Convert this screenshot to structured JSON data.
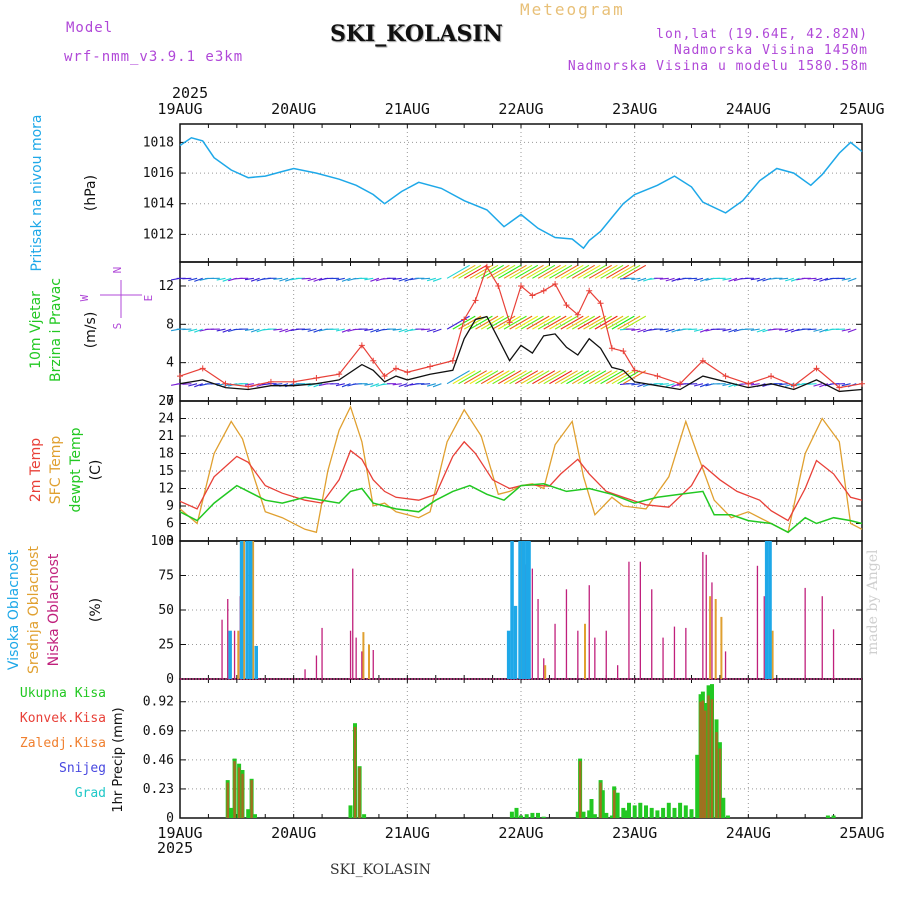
{
  "header": {
    "model_label": "Model",
    "model_name": "wrf-nmm_v3.9.1 e3km",
    "station": "SKI_KOLASIN",
    "meteogram": "Meteogram",
    "lonlat": "lon,lat (19.64E, 42.82N)",
    "altitude": "Nadmorska Visina 1450m",
    "model_altitude": "Nadmorska Visina u modelu 1580.58m",
    "year": "2025",
    "made_by": "made by Angel",
    "footer_station": "SKI_KOLASIN"
  },
  "colors": {
    "pressure": "#1ea8e8",
    "temp2m": "#e84038",
    "sfc_temp": "#e0a030",
    "dewpoint": "#22c822",
    "high_cloud": "#1ea8e8",
    "mid_cloud": "#e0a030",
    "low_cloud": "#c0207c",
    "total_precip": "#22c822",
    "conv_precip": "#e84038",
    "ice_precip": "#f08030",
    "snow": "#4848e0",
    "hail": "#20c8c8",
    "wind_label": "#22c822",
    "dir_label": "#b048d8"
  },
  "chart_data": [
    {
      "id": "pressure",
      "type": "line",
      "title": "Pritisak na nivou mora",
      "ylabel": "(hPa)",
      "ylim": [
        1010.2,
        1019.2
      ],
      "yticks": [
        "1012",
        "1014",
        "1016",
        "1018"
      ],
      "ytick_values": [
        1012,
        1014,
        1016,
        1018
      ],
      "xlim": [
        0,
        6
      ],
      "xtick_labels": [
        "19AUG",
        "20AUG",
        "21AUG",
        "22AUG",
        "23AUG",
        "24AUG",
        "25AUG"
      ],
      "series": [
        {
          "name": "MSLP",
          "x": [
            0,
            0.1,
            0.2,
            0.3,
            0.45,
            0.6,
            0.75,
            0.9,
            1.0,
            1.2,
            1.4,
            1.55,
            1.7,
            1.8,
            1.95,
            2.1,
            2.3,
            2.5,
            2.7,
            2.85,
            3.0,
            3.15,
            3.3,
            3.45,
            3.55,
            3.6,
            3.7,
            3.8,
            3.9,
            4.0,
            4.2,
            4.35,
            4.5,
            4.6,
            4.8,
            4.95,
            5.1,
            5.25,
            5.4,
            5.55,
            5.65,
            5.8,
            5.9,
            6.0
          ],
          "values": [
            1017.8,
            1018.3,
            1018.1,
            1017.0,
            1016.2,
            1015.7,
            1015.8,
            1016.1,
            1016.3,
            1016.0,
            1015.6,
            1015.2,
            1014.6,
            1014.0,
            1014.8,
            1015.4,
            1015.0,
            1014.2,
            1013.6,
            1012.5,
            1013.3,
            1012.4,
            1011.8,
            1011.7,
            1011.1,
            1011.6,
            1012.2,
            1013.1,
            1014.0,
            1014.6,
            1015.2,
            1015.8,
            1015.1,
            1014.1,
            1013.4,
            1014.2,
            1015.5,
            1016.3,
            1016.0,
            1015.2,
            1015.9,
            1017.3,
            1018.0,
            1017.4
          ]
        }
      ]
    },
    {
      "id": "wind",
      "type": "line",
      "title": "10m Vjetar Brzina i Pravac",
      "ylabel": "(m/s)",
      "ylim": [
        0,
        14
      ],
      "yticks": [
        "0",
        "4",
        "8",
        "12"
      ],
      "ytick_values": [
        0,
        4,
        8,
        12
      ],
      "direction_legend": [
        "N",
        "W",
        "E",
        "S"
      ],
      "xlim": [
        0,
        6
      ],
      "series": [
        {
          "name": "wind speed",
          "x": [
            0,
            0.2,
            0.4,
            0.6,
            0.8,
            1.0,
            1.2,
            1.4,
            1.6,
            1.7,
            1.8,
            1.9,
            2.0,
            2.2,
            2.4,
            2.5,
            2.6,
            2.7,
            2.8,
            2.9,
            3.0,
            3.1,
            3.2,
            3.3,
            3.4,
            3.5,
            3.6,
            3.7,
            3.8,
            3.9,
            4.0,
            4.2,
            4.4,
            4.6,
            4.8,
            5.0,
            5.2,
            5.4,
            5.6,
            5.8,
            6.0
          ],
          "values": [
            1.8,
            2.2,
            1.4,
            1.2,
            1.6,
            1.6,
            1.8,
            2.2,
            3.8,
            3.2,
            2.0,
            2.6,
            2.2,
            2.8,
            3.2,
            6.5,
            8.5,
            8.8,
            6.5,
            4.2,
            5.8,
            5.0,
            6.8,
            7.0,
            5.6,
            4.8,
            6.5,
            5.5,
            3.5,
            3.2,
            2.0,
            1.6,
            1.2,
            2.6,
            2.0,
            1.4,
            1.8,
            1.2,
            2.2,
            1.0,
            1.2
          ]
        },
        {
          "name": "wind gust",
          "x": [
            0,
            0.2,
            0.4,
            0.6,
            0.8,
            1.0,
            1.2,
            1.4,
            1.6,
            1.7,
            1.8,
            1.9,
            2.0,
            2.2,
            2.4,
            2.5,
            2.6,
            2.7,
            2.8,
            2.9,
            3.0,
            3.1,
            3.2,
            3.3,
            3.4,
            3.5,
            3.6,
            3.7,
            3.8,
            3.9,
            4.0,
            4.2,
            4.4,
            4.6,
            4.8,
            5.0,
            5.2,
            5.4,
            5.6,
            5.8,
            6.0
          ],
          "values": [
            2.6,
            3.4,
            1.8,
            1.5,
            2.0,
            2.0,
            2.4,
            2.8,
            5.8,
            4.2,
            2.6,
            3.4,
            3.0,
            3.6,
            4.2,
            8.5,
            10.5,
            14.0,
            12.0,
            8.2,
            12.0,
            11.0,
            11.5,
            12.2,
            10.0,
            9.0,
            11.5,
            10.2,
            5.5,
            5.2,
            3.2,
            2.6,
            1.8,
            4.2,
            2.6,
            1.8,
            2.6,
            1.6,
            3.4,
            1.4,
            1.8
          ]
        }
      ],
      "arrow_rows_ms": [
        1.8,
        7.5,
        12.8
      ]
    },
    {
      "id": "temperature",
      "type": "line",
      "title": "2m Temp / SFC Temp / dewpt Temp",
      "legend": [
        "2m Temp",
        "SFC Temp",
        "dewpt Temp"
      ],
      "ylabel": "(C)",
      "ylim": [
        3,
        27
      ],
      "yticks": [
        "3",
        "6",
        "9",
        "12",
        "15",
        "18",
        "21",
        "24",
        "27"
      ],
      "ytick_values": [
        3,
        6,
        9,
        12,
        15,
        18,
        21,
        24,
        27
      ],
      "xlim": [
        0,
        6
      ],
      "series": [
        {
          "name": "2m Temp",
          "x": [
            0,
            0.15,
            0.3,
            0.5,
            0.6,
            0.75,
            0.9,
            1.1,
            1.25,
            1.4,
            1.5,
            1.6,
            1.7,
            1.8,
            1.9,
            2.1,
            2.25,
            2.4,
            2.5,
            2.6,
            2.75,
            2.9,
            3.0,
            3.1,
            3.25,
            3.35,
            3.5,
            3.6,
            3.75,
            3.9,
            4.1,
            4.3,
            4.5,
            4.6,
            4.75,
            4.9,
            5.1,
            5.2,
            5.35,
            5.5,
            5.6,
            5.75,
            5.9,
            6.0
          ],
          "values": [
            9.8,
            8.5,
            14.0,
            17.5,
            16.5,
            12.5,
            11.2,
            10.0,
            9.5,
            13.5,
            18.5,
            17.0,
            13.5,
            11.5,
            10.5,
            10.0,
            11.0,
            17.5,
            20.0,
            18.0,
            13.5,
            12.0,
            12.5,
            12.6,
            12.4,
            14.5,
            17.0,
            14.5,
            11.5,
            10.5,
            9.2,
            8.8,
            12.5,
            16.0,
            13.5,
            11.5,
            10.0,
            8.2,
            6.5,
            12.0,
            16.8,
            14.5,
            10.5,
            10.0
          ]
        },
        {
          "name": "SFC Temp",
          "x": [
            0,
            0.15,
            0.3,
            0.45,
            0.55,
            0.65,
            0.75,
            0.9,
            1.1,
            1.2,
            1.3,
            1.4,
            1.5,
            1.6,
            1.7,
            1.8,
            1.9,
            2.1,
            2.2,
            2.35,
            2.5,
            2.65,
            2.8,
            2.9,
            3.0,
            3.1,
            3.2,
            3.3,
            3.45,
            3.55,
            3.65,
            3.8,
            3.9,
            4.1,
            4.3,
            4.45,
            4.55,
            4.7,
            4.85,
            5.0,
            5.2,
            5.35,
            5.5,
            5.65,
            5.8,
            5.9,
            6.0
          ],
          "values": [
            8.5,
            6.0,
            18.0,
            23.5,
            20.5,
            14.0,
            8.0,
            7.0,
            5.0,
            4.5,
            15.0,
            22.0,
            26.0,
            20.0,
            9.0,
            9.5,
            8.0,
            7.0,
            8.0,
            20.0,
            25.5,
            21.0,
            11.0,
            11.5,
            12.5,
            12.8,
            12.0,
            19.5,
            23.5,
            14.0,
            7.5,
            10.5,
            9.0,
            8.5,
            14.0,
            23.5,
            18.0,
            10.0,
            7.0,
            8.0,
            6.0,
            4.5,
            18.0,
            24.0,
            20.0,
            6.0,
            5.0
          ]
        },
        {
          "name": "dewpt Temp",
          "x": [
            0,
            0.15,
            0.3,
            0.5,
            0.6,
            0.75,
            0.9,
            1.1,
            1.25,
            1.4,
            1.5,
            1.6,
            1.7,
            1.8,
            1.9,
            2.1,
            2.25,
            2.4,
            2.55,
            2.7,
            2.85,
            3.0,
            3.2,
            3.4,
            3.6,
            3.8,
            4.0,
            4.2,
            4.4,
            4.6,
            4.7,
            4.85,
            5.0,
            5.2,
            5.35,
            5.5,
            5.6,
            5.75,
            5.9,
            6.0
          ],
          "values": [
            8.0,
            6.5,
            9.5,
            12.5,
            11.5,
            10.0,
            9.5,
            10.5,
            10.0,
            9.5,
            11.5,
            12.0,
            9.5,
            9.0,
            8.5,
            8.0,
            10.0,
            11.5,
            12.5,
            11.0,
            10.0,
            12.5,
            12.8,
            11.5,
            12.0,
            11.0,
            9.5,
            10.5,
            11.0,
            11.5,
            7.5,
            7.5,
            6.5,
            6.0,
            4.5,
            7.0,
            6.0,
            7.0,
            6.5,
            6.0
          ]
        }
      ]
    },
    {
      "id": "cloud",
      "type": "bar",
      "title": "Visoka / Srednja / Niska Oblacnost",
      "legend": [
        "Visoka Oblacnost",
        "Srednja Oblacnost",
        "Niska Oblacnost"
      ],
      "ylabel": "(%)",
      "ylim": [
        0,
        100
      ],
      "yticks": [
        "0",
        "25",
        "50",
        "75",
        "100"
      ],
      "ytick_values": [
        0,
        25,
        50,
        75,
        100
      ],
      "xlim": [
        0,
        6
      ],
      "series": [
        {
          "name": "Visoka",
          "x": [
            0.45,
            0.55,
            0.6,
            0.63,
            0.68,
            2.9,
            2.93,
            2.96,
            3.0,
            3.03,
            3.06,
            3.08,
            5.17,
            5.2
          ],
          "values": [
            35,
            100,
            100,
            100,
            24,
            35,
            100,
            53,
            100,
            100,
            100,
            100,
            100,
            100
          ]
        },
        {
          "name": "Srednja",
          "x": [
            0.5,
            0.55,
            0.58,
            0.63,
            1.6,
            1.65,
            3.0,
            3.05,
            3.2,
            3.55,
            4.65,
            4.7,
            4.75,
            5.2
          ],
          "values": [
            35,
            100,
            100,
            100,
            34,
            25,
            100,
            100,
            10,
            40,
            60,
            58,
            45,
            35
          ]
        },
        {
          "name": "Niska",
          "x": [
            0.37,
            0.42,
            0.48,
            0.53,
            1.1,
            1.2,
            1.25,
            1.5,
            1.52,
            1.55,
            1.6,
            1.7,
            3.04,
            3.1,
            3.15,
            3.2,
            3.3,
            3.4,
            3.5,
            3.6,
            3.65,
            3.75,
            3.85,
            3.95,
            4.05,
            4.15,
            4.25,
            4.35,
            4.45,
            4.6,
            4.63,
            4.68,
            4.8,
            5.08,
            5.14,
            5.5,
            5.65,
            5.75
          ],
          "values": [
            43,
            58,
            35,
            60,
            7,
            17,
            37,
            35,
            80,
            30,
            20,
            21,
            83,
            80,
            58,
            15,
            40,
            65,
            35,
            68,
            30,
            35,
            10,
            85,
            85,
            65,
            30,
            38,
            37,
            92,
            90,
            70,
            20,
            82,
            60,
            66,
            60,
            36
          ]
        }
      ]
    },
    {
      "id": "precip",
      "type": "bar",
      "title": "1hr Precip",
      "legend": [
        "Ukupna Kisa",
        "Konvek.Kisa",
        "Zaledj.Kisa",
        "Snijeg",
        "Grad"
      ],
      "ylabel": "1hr Precip (mm)",
      "ylim": [
        0,
        1.1
      ],
      "yticks": [
        "0",
        "0.23",
        "0.46",
        "0.69",
        "0.92"
      ],
      "ytick_values": [
        0,
        0.23,
        0.46,
        0.69,
        0.92
      ],
      "xlim": [
        0,
        6
      ],
      "xtick_labels": [
        "19AUG",
        "20AUG",
        "21AUG",
        "22AUG",
        "23AUG",
        "24AUG",
        "25AUG"
      ],
      "series": [
        {
          "name": "Ukupna",
          "x": [
            0.42,
            0.45,
            0.48,
            0.52,
            0.55,
            0.6,
            0.63,
            0.66,
            1.5,
            1.54,
            1.58,
            1.62,
            2.92,
            2.96,
            3.0,
            3.05,
            3.1,
            3.15,
            3.2,
            3.5,
            3.52,
            3.55,
            3.6,
            3.62,
            3.65,
            3.7,
            3.72,
            3.75,
            3.8,
            3.82,
            3.85,
            3.9,
            3.92,
            3.95,
            4.0,
            4.05,
            4.1,
            4.15,
            4.2,
            4.25,
            4.3,
            4.35,
            4.4,
            4.45,
            4.5,
            4.55,
            4.58,
            4.6,
            4.62,
            4.65,
            4.68,
            4.72,
            4.75,
            4.78,
            4.82,
            5.7,
            5.75
          ],
          "values": [
            0.3,
            0.08,
            0.47,
            0.43,
            0.38,
            0.07,
            0.31,
            0.03,
            0.1,
            0.75,
            0.41,
            0.03,
            0.05,
            0.08,
            0.02,
            0.03,
            0.04,
            0.04,
            0.01,
            0.05,
            0.47,
            0.05,
            0.06,
            0.15,
            0.03,
            0.3,
            0.22,
            0.04,
            0.02,
            0.25,
            0.2,
            0.08,
            0.06,
            0.12,
            0.1,
            0.12,
            0.1,
            0.08,
            0.06,
            0.08,
            0.12,
            0.08,
            0.12,
            0.1,
            0.07,
            0.5,
            0.98,
            1.0,
            0.91,
            1.05,
            1.06,
            0.78,
            0.6,
            0.16,
            0.02,
            0.02,
            0.02
          ]
        },
        {
          "name": "Konvek",
          "x": [
            0.42,
            0.48,
            0.52,
            0.55,
            0.63,
            1.54,
            1.58,
            3.52,
            3.7,
            3.82,
            4.58,
            4.6,
            4.62,
            4.65,
            4.68,
            4.72,
            4.75
          ],
          "values": [
            0.28,
            0.45,
            0.4,
            0.35,
            0.3,
            0.72,
            0.4,
            0.45,
            0.28,
            0.22,
            0.92,
            0.93,
            0.85,
            0.97,
            0.94,
            0.68,
            0.55
          ]
        }
      ]
    }
  ]
}
